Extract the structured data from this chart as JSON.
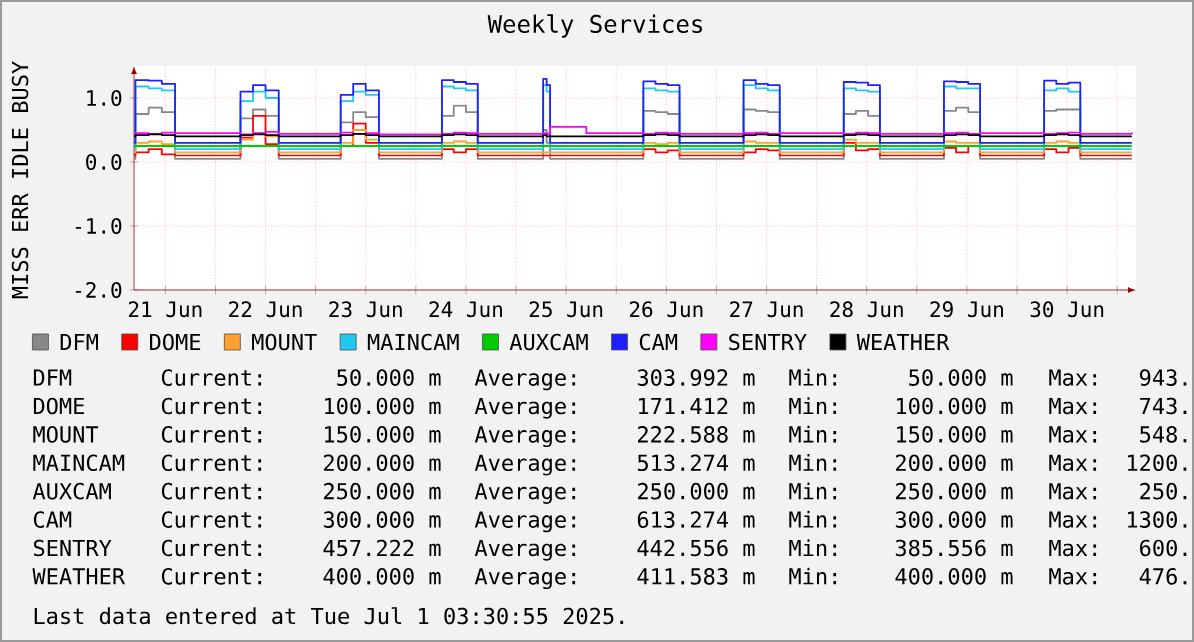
{
  "chart_data": {
    "type": "step",
    "title": "Weekly Services",
    "ylabel": "MISS ERR IDLE BUSY",
    "x": [
      "2025-06-21T04:30",
      "2025-06-21T04:50",
      "2025-06-21T08:00",
      "2025-06-21T11:10",
      "2025-06-21T14:20",
      "2025-06-22T06:00",
      "2025-06-22T09:00",
      "2025-06-22T12:00",
      "2025-06-22T15:10",
      "2025-06-23T06:00",
      "2025-06-23T09:00",
      "2025-06-23T12:00",
      "2025-06-23T15:10",
      "2025-06-24T06:15",
      "2025-06-24T09:05",
      "2025-06-24T12:00",
      "2025-06-24T14:50",
      "2025-06-25T06:30",
      "2025-06-25T07:20",
      "2025-06-25T08:10",
      "2025-06-25T16:50",
      "2025-06-26T06:30",
      "2025-06-26T09:25",
      "2025-06-26T12:20",
      "2025-06-26T15:10",
      "2025-06-27T06:30",
      "2025-06-27T09:25",
      "2025-06-27T12:20",
      "2025-06-27T15:10",
      "2025-06-28T06:30",
      "2025-06-28T09:25",
      "2025-06-28T12:20",
      "2025-06-28T15:10",
      "2025-06-29T06:30",
      "2025-06-29T09:25",
      "2025-06-29T12:20",
      "2025-06-29T15:10",
      "2025-06-30T06:30",
      "2025-06-30T09:25",
      "2025-06-30T12:20",
      "2025-06-30T15:10",
      "2025-07-01T03:30"
    ],
    "series": [
      {
        "name": "DFM",
        "color": "#888888",
        "values": [
          0.05,
          0.75,
          0.85,
          0.78,
          0.05,
          0.68,
          0.82,
          0.72,
          0.05,
          0.62,
          0.78,
          0.7,
          0.05,
          0.72,
          0.88,
          0.78,
          0.05,
          0.5,
          0.3,
          0.05,
          0.05,
          0.8,
          0.78,
          0.75,
          0.05,
          0.82,
          0.8,
          0.78,
          0.05,
          0.75,
          0.8,
          0.72,
          0.05,
          0.8,
          0.85,
          0.78,
          0.05,
          0.8,
          0.82,
          0.82,
          0.05,
          0.05
        ]
      },
      {
        "name": "DOME",
        "color": "#ff0000",
        "values": [
          0.1,
          0.15,
          0.2,
          0.12,
          0.1,
          0.38,
          0.72,
          0.28,
          0.1,
          0.25,
          0.6,
          0.3,
          0.1,
          0.2,
          0.15,
          0.2,
          0.1,
          0.1,
          0.1,
          0.1,
          0.1,
          0.2,
          0.15,
          0.18,
          0.1,
          0.15,
          0.2,
          0.18,
          0.1,
          0.3,
          0.18,
          0.2,
          0.1,
          0.22,
          0.15,
          0.25,
          0.1,
          0.2,
          0.15,
          0.22,
          0.1,
          0.1
        ]
      },
      {
        "name": "MOUNT",
        "color": "#ffa030",
        "values": [
          0.15,
          0.3,
          0.32,
          0.28,
          0.15,
          0.35,
          0.45,
          0.4,
          0.15,
          0.3,
          0.5,
          0.35,
          0.15,
          0.3,
          0.32,
          0.3,
          0.15,
          0.15,
          0.15,
          0.15,
          0.15,
          0.3,
          0.28,
          0.3,
          0.15,
          0.32,
          0.3,
          0.3,
          0.15,
          0.35,
          0.3,
          0.3,
          0.15,
          0.32,
          0.3,
          0.3,
          0.15,
          0.3,
          0.32,
          0.3,
          0.15,
          0.15
        ]
      },
      {
        "name": "MAINCAM",
        "color": "#20c8f0",
        "values": [
          0.2,
          1.18,
          1.15,
          1.12,
          0.2,
          0.95,
          1.1,
          1.0,
          0.2,
          0.95,
          1.1,
          1.05,
          0.2,
          1.18,
          1.15,
          1.12,
          0.2,
          1.2,
          1.1,
          0.2,
          0.2,
          1.15,
          1.12,
          1.1,
          0.2,
          1.2,
          1.15,
          1.12,
          0.2,
          1.15,
          1.12,
          1.1,
          0.2,
          1.18,
          1.15,
          1.15,
          0.2,
          1.12,
          1.15,
          1.1,
          0.2,
          0.2
        ]
      },
      {
        "name": "AUXCAM",
        "color": "#00cc00",
        "values": [
          0.25,
          0.25,
          0.25,
          0.25,
          0.25,
          0.25,
          0.25,
          0.25,
          0.25,
          0.25,
          0.25,
          0.25,
          0.25,
          0.25,
          0.25,
          0.25,
          0.25,
          0.25,
          0.25,
          0.25,
          0.25,
          0.25,
          0.25,
          0.25,
          0.25,
          0.25,
          0.25,
          0.25,
          0.25,
          0.25,
          0.25,
          0.25,
          0.25,
          0.25,
          0.25,
          0.25,
          0.25,
          0.25,
          0.25,
          0.25,
          0.25,
          0.25
        ]
      },
      {
        "name": "CAM",
        "color": "#2020ff",
        "values": [
          0.3,
          1.28,
          1.27,
          1.22,
          0.3,
          1.1,
          1.2,
          1.12,
          0.3,
          1.05,
          1.22,
          1.12,
          0.3,
          1.28,
          1.25,
          1.22,
          0.3,
          1.3,
          1.2,
          0.3,
          0.3,
          1.26,
          1.22,
          1.2,
          0.3,
          1.28,
          1.22,
          1.2,
          0.3,
          1.25,
          1.24,
          1.2,
          0.3,
          1.26,
          1.25,
          1.22,
          0.3,
          1.27,
          1.22,
          1.24,
          0.3,
          0.3
        ]
      },
      {
        "name": "SENTRY",
        "color": "#ff00ff",
        "values": [
          0.44,
          0.45,
          0.44,
          0.46,
          0.45,
          0.43,
          0.45,
          0.47,
          0.44,
          0.46,
          0.44,
          0.45,
          0.43,
          0.44,
          0.46,
          0.45,
          0.44,
          0.45,
          0.44,
          0.55,
          0.45,
          0.44,
          0.46,
          0.45,
          0.44,
          0.45,
          0.46,
          0.44,
          0.45,
          0.44,
          0.46,
          0.45,
          0.44,
          0.45,
          0.46,
          0.44,
          0.45,
          0.44,
          0.45,
          0.46,
          0.44,
          0.46
        ]
      },
      {
        "name": "WEATHER",
        "color": "#000000",
        "values": [
          0.4,
          0.42,
          0.43,
          0.42,
          0.4,
          0.42,
          0.43,
          0.42,
          0.4,
          0.42,
          0.44,
          0.42,
          0.4,
          0.42,
          0.43,
          0.42,
          0.4,
          0.42,
          0.4,
          0.4,
          0.4,
          0.42,
          0.43,
          0.42,
          0.4,
          0.42,
          0.43,
          0.42,
          0.4,
          0.42,
          0.43,
          0.42,
          0.4,
          0.42,
          0.43,
          0.42,
          0.4,
          0.42,
          0.43,
          0.42,
          0.4,
          0.4
        ]
      }
    ],
    "xlim": [
      "2025-06-21T04:30",
      "2025-07-01T04:30"
    ],
    "xticks": [
      {
        "value": "2025-06-21T12:00",
        "label": "21 Jun"
      },
      {
        "value": "2025-06-22T00:00",
        "label": null
      },
      {
        "value": "2025-06-22T12:00",
        "label": "22 Jun"
      },
      {
        "value": "2025-06-23T00:00",
        "label": null
      },
      {
        "value": "2025-06-23T12:00",
        "label": "23 Jun"
      },
      {
        "value": "2025-06-24T00:00",
        "label": null
      },
      {
        "value": "2025-06-24T12:00",
        "label": "24 Jun"
      },
      {
        "value": "2025-06-25T00:00",
        "label": null
      },
      {
        "value": "2025-06-25T12:00",
        "label": "25 Jun"
      },
      {
        "value": "2025-06-26T00:00",
        "label": null
      },
      {
        "value": "2025-06-26T12:00",
        "label": "26 Jun"
      },
      {
        "value": "2025-06-27T00:00",
        "label": null
      },
      {
        "value": "2025-06-27T12:00",
        "label": "27 Jun"
      },
      {
        "value": "2025-06-28T00:00",
        "label": null
      },
      {
        "value": "2025-06-28T12:00",
        "label": "28 Jun"
      },
      {
        "value": "2025-06-29T00:00",
        "label": null
      },
      {
        "value": "2025-06-29T12:00",
        "label": "29 Jun"
      },
      {
        "value": "2025-06-30T00:00",
        "label": null
      },
      {
        "value": "2025-06-30T12:00",
        "label": "30 Jun"
      },
      {
        "value": "2025-07-01T00:00",
        "label": null
      }
    ],
    "ylim": [
      -2,
      1.5
    ],
    "yticks": [
      {
        "value": -2,
        "label": "-2.0"
      },
      {
        "value": -1,
        "label": "-1.0"
      },
      {
        "value": 0,
        "label": "0.0"
      },
      {
        "value": 1,
        "label": "1.0"
      }
    ],
    "grid": true,
    "legend": "bottom",
    "annotations": [
      "Current:",
      "50.000 m",
      "Average:",
      "303.992 m",
      "Min:",
      "50.000 m",
      "Max:",
      "943.",
      "Current:",
      "100.000 m",
      "Average:",
      "171.412 m",
      "Min:",
      "100.000 m",
      "Max:",
      "743.",
      "Current:",
      "150.000 m",
      "Average:",
      "222.588 m",
      "Min:",
      "150.000 m",
      "Max:",
      "548.",
      "Current:",
      "200.000 m",
      "Average:",
      "513.274 m",
      "Min:",
      "200.000 m",
      "Max:",
      "1200.",
      "Current:",
      "250.000 m",
      "Average:",
      "250.000 m",
      "Min:",
      "250.000 m",
      "Max:",
      "250.",
      "Current:",
      "300.000 m",
      "Average:",
      "613.274 m",
      "Min:",
      "300.000 m",
      "Max:",
      "1300.",
      "Current:",
      "457.222 m",
      "Average:",
      "442.556 m",
      "Min:",
      "385.556 m",
      "Max:",
      "600.",
      "Current:",
      "400.000 m",
      "Average:",
      "411.583 m",
      "Min:",
      "400.000 m",
      "Max:",
      "476.",
      "Last data entered at Tue Jul  1 03:30:55 2025."
    ]
  }
}
